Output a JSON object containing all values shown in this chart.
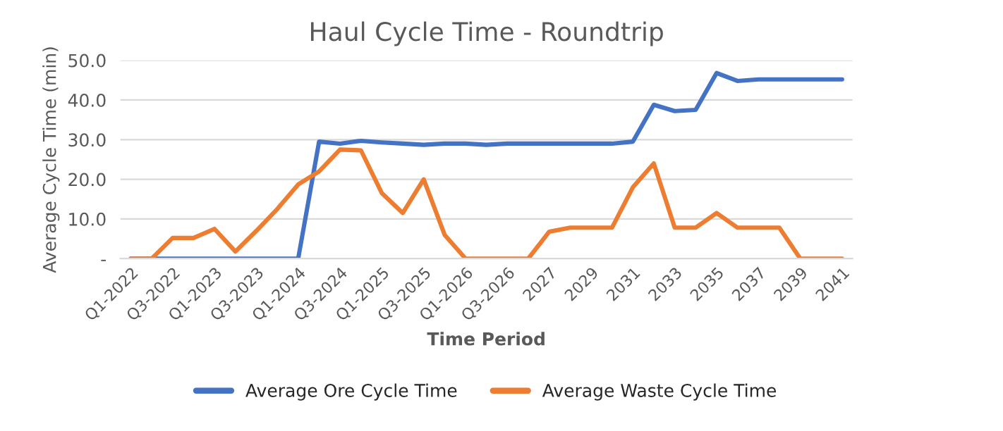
{
  "chart_data": {
    "type": "line",
    "title": "Haul Cycle Time - Roundtrip",
    "xlabel": "Time Period",
    "ylabel": "Average Cycle Time (min)",
    "categories": [
      "Q1-2022",
      null,
      "Q3-2022",
      null,
      "Q1-2023",
      null,
      "Q3-2023",
      null,
      "Q1-2024",
      null,
      "Q3-2024",
      null,
      "Q1-2025",
      null,
      "Q3-2025",
      null,
      "Q1-2026",
      null,
      "Q3-2026",
      null,
      "2027",
      null,
      "2029",
      null,
      "2031",
      null,
      "2033",
      null,
      "2035",
      null,
      "2037",
      null,
      "2039",
      null,
      "2041"
    ],
    "series": [
      {
        "name": "Average Ore Cycle Time",
        "color": "#4472c4",
        "values": [
          0,
          0,
          0,
          0,
          0,
          0,
          0,
          0,
          0,
          29.5,
          29,
          29.7,
          29.3,
          29,
          28.7,
          29,
          29,
          28.7,
          29,
          29,
          29,
          29,
          29,
          29,
          29.5,
          38.8,
          37.2,
          37.5,
          46.8,
          44.8,
          45.2,
          45.2,
          45.2,
          45.2,
          45.2
        ]
      },
      {
        "name": "Average Waste Cycle Time",
        "color": "#ed7d31",
        "values": [
          0,
          0,
          5.2,
          5.2,
          7.5,
          1.8,
          7,
          12.5,
          18.7,
          22,
          27.5,
          27.3,
          16.5,
          11.5,
          20,
          6,
          0,
          0,
          0,
          0,
          6.8,
          7.8,
          7.8,
          7.8,
          18,
          24,
          7.8,
          7.8,
          11.5,
          7.8,
          7.8,
          7.8,
          0,
          0,
          0
        ]
      }
    ],
    "ylim": [
      0,
      50
    ],
    "yticks": [
      {
        "value": 0,
        "label": "-"
      },
      {
        "value": 10,
        "label": "10.0"
      },
      {
        "value": 20,
        "label": "20.0"
      },
      {
        "value": 30,
        "label": "30.0"
      },
      {
        "value": 40,
        "label": "40.0"
      },
      {
        "value": 50,
        "label": "50.0"
      }
    ],
    "grid": "y",
    "legend": "bottom",
    "marker": "none",
    "line_style": "solid"
  }
}
